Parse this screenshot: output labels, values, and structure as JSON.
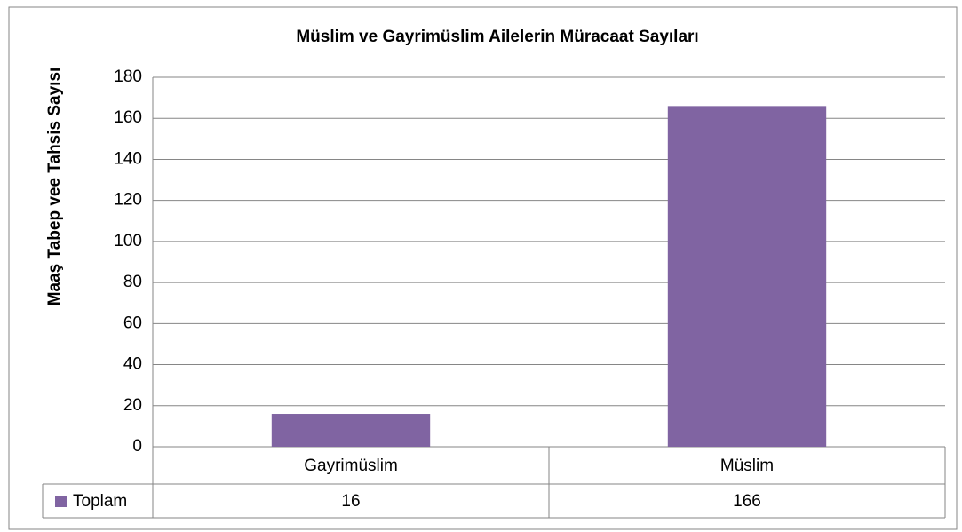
{
  "chart_data": {
    "type": "bar",
    "title": "Müslim ve Gayrimüslim Ailelerin Müracaat Sayıları",
    "y_label": "Maaş Tabep vee Tahsis Sayısı",
    "categories": [
      "Gayrimüslim",
      "Müslim"
    ],
    "series": [
      {
        "name": "Toplam",
        "color": "#8064a2",
        "values": [
          16,
          166
        ]
      }
    ],
    "ylim": [
      0,
      180
    ],
    "yticks": [
      0,
      20,
      40,
      60,
      80,
      100,
      120,
      140,
      160,
      180
    ],
    "grid": true,
    "data_table": true
  }
}
